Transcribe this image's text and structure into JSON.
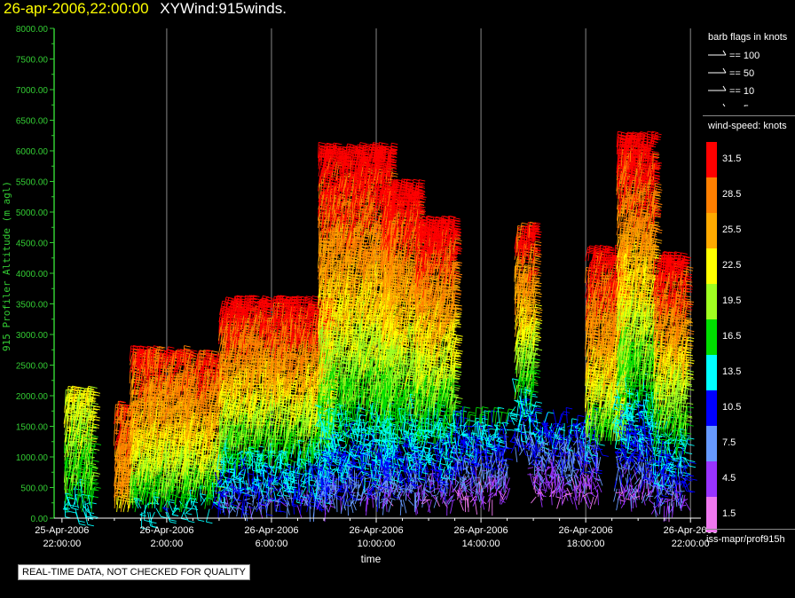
{
  "header": {
    "timestamp": "26-apr-2006,22:00:00",
    "product": "XYWind:915winds."
  },
  "footer": {
    "qc_notice": "REAL-TIME DATA, NOT CHECKED FOR QUALITY",
    "source": "iss-mapr/prof915h"
  },
  "colors": {
    "axis": "#33cc33",
    "gridline": "#888888",
    "background": "#000000",
    "title": "#ffff00"
  },
  "legend": {
    "barb_title": "barb flags in knots",
    "barbs": [
      {
        "label": "== 100"
      },
      {
        "label": "== 50"
      },
      {
        "label": "== 10"
      },
      {
        "label": "== 5"
      }
    ],
    "speed_title": "wind-speed: knots",
    "scale": [
      {
        "label": "31.5",
        "color": "#ff0000"
      },
      {
        "label": "28.5",
        "color": "#ff7f00"
      },
      {
        "label": "25.5",
        "color": "#ffaa00"
      },
      {
        "label": "22.5",
        "color": "#ffff00"
      },
      {
        "label": "19.5",
        "color": "#a0ff20"
      },
      {
        "label": "16.5",
        "color": "#00dd00"
      },
      {
        "label": "13.5",
        "color": "#00ffff"
      },
      {
        "label": "10.5",
        "color": "#0000ff"
      },
      {
        "label": "7.5",
        "color": "#6699ff"
      },
      {
        "label": "4.5",
        "color": "#9933ff"
      },
      {
        "label": "1.5",
        "color": "#ee77ee"
      }
    ]
  },
  "chart_data": {
    "type": "scatter",
    "ylabel": "915 Profiler Altitude (m agl)",
    "xlabel": "time",
    "ylim": [
      0,
      8000
    ],
    "y_ticks": [
      "0.00",
      "500.00",
      "1000.00",
      "1500.00",
      "2000.00",
      "2500.00",
      "3000.00",
      "3500.00",
      "4000.00",
      "4500.00",
      "5000.00",
      "5500.00",
      "6000.00",
      "6500.00",
      "7000.00",
      "7500.00",
      "8000.00"
    ],
    "x_ticks": [
      {
        "date": "25-Apr-2006",
        "time": "22:00:00",
        "hour": 0
      },
      {
        "date": "26-Apr-2006",
        "time": "2:00:00",
        "hour": 4
      },
      {
        "date": "26-Apr-2006",
        "time": "6:00:00",
        "hour": 8
      },
      {
        "date": "26-Apr-2006",
        "time": "10:00:00",
        "hour": 12
      },
      {
        "date": "26-Apr-2006",
        "time": "14:00:00",
        "hour": 16
      },
      {
        "date": "26-Apr-2006",
        "time": "18:00:00",
        "hour": 20
      },
      {
        "date": "26-Apr-2006",
        "time": "22:00:00",
        "hour": 24
      }
    ],
    "xlim_hours": [
      -0.3,
      24.4
    ],
    "grid": "vertical",
    "wind_regions": [
      {
        "t0": 0.1,
        "t1": 1.2,
        "z0": 100,
        "z1": 1900,
        "speed_low": 14,
        "speed_high": 22
      },
      {
        "t0": 2.0,
        "t1": 2.6,
        "z0": 100,
        "z1": 1700,
        "speed_low": 24,
        "speed_high": 30
      },
      {
        "t0": 2.6,
        "t1": 4.8,
        "z0": 100,
        "z1": 2600,
        "speed_low": 14,
        "speed_high": 31
      },
      {
        "t0": 4.7,
        "t1": 6.0,
        "z0": 150,
        "z1": 2500,
        "speed_low": 14,
        "speed_high": 31
      },
      {
        "t0": 6.0,
        "t1": 10.3,
        "z0": 200,
        "z1": 3400,
        "speed_low": 6,
        "speed_high": 33
      },
      {
        "t0": 9.8,
        "t1": 12.6,
        "z0": 300,
        "z1": 5900,
        "speed_low": 6,
        "speed_high": 33
      },
      {
        "t0": 12.2,
        "t1": 13.6,
        "z0": 300,
        "z1": 5300,
        "speed_low": 5,
        "speed_high": 33
      },
      {
        "t0": 13.5,
        "t1": 15.0,
        "z0": 300,
        "z1": 4700,
        "speed_low": 4,
        "speed_high": 33
      },
      {
        "t0": 15.0,
        "t1": 17.0,
        "z0": 300,
        "z1": 1600,
        "speed_low": 2,
        "speed_high": 14
      },
      {
        "t0": 17.3,
        "t1": 18.0,
        "z0": 1100,
        "z1": 4600,
        "speed_low": 6,
        "speed_high": 32
      },
      {
        "t0": 18.0,
        "t1": 20.5,
        "z0": 350,
        "z1": 1600,
        "speed_low": 2,
        "speed_high": 12
      },
      {
        "t0": 20.0,
        "t1": 21.5,
        "z0": 1200,
        "z1": 4200,
        "speed_low": 16,
        "speed_high": 32
      },
      {
        "t0": 21.2,
        "t1": 22.6,
        "z0": 300,
        "z1": 6100,
        "speed_low": 3,
        "speed_high": 33
      },
      {
        "t0": 22.6,
        "t1": 23.8,
        "z0": 200,
        "z1": 4100,
        "speed_low": 4,
        "speed_high": 33
      }
    ]
  }
}
